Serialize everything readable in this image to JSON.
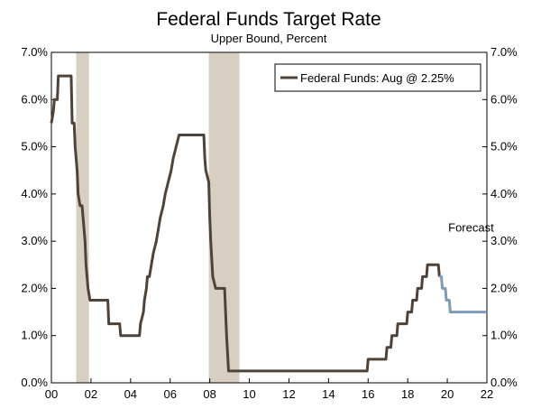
{
  "chart_data": {
    "type": "line",
    "title": "Federal Funds Target Rate",
    "subtitle": "Upper Bound, Percent",
    "xlim": [
      2000,
      2022
    ],
    "ylim": [
      0,
      7
    ],
    "x_ticks": [
      2000,
      2002,
      2004,
      2006,
      2008,
      2010,
      2012,
      2014,
      2016,
      2018,
      2020,
      2022
    ],
    "x_tick_labels": [
      "00",
      "02",
      "04",
      "06",
      "08",
      "10",
      "12",
      "14",
      "16",
      "18",
      "20",
      "22"
    ],
    "y_ticks": [
      0,
      1,
      2,
      3,
      4,
      5,
      6,
      7
    ],
    "y_tick_labels": [
      "0.0%",
      "1.0%",
      "2.0%",
      "3.0%",
      "4.0%",
      "5.0%",
      "6.0%",
      "7.0%"
    ],
    "y_tick_labels_right": [
      "0.0%",
      "1.0%",
      "2.0%",
      "3.0%",
      "4.0%",
      "5.0%",
      "6.0%",
      "7.0%"
    ],
    "grid": false,
    "legend": {
      "placement": "top-right",
      "entries": [
        {
          "label": "Federal Funds: Aug @ 2.25%",
          "color": "#4f4339"
        }
      ]
    },
    "annotations": [
      {
        "text": "Forecast",
        "x": 2021.2,
        "y": 3.2
      }
    ],
    "recessions": [
      [
        2001.25,
        2001.9
      ],
      [
        2007.95,
        2009.5
      ]
    ],
    "recession_color": "#d7cfc1",
    "series": [
      {
        "name": "Federal Funds: Aug @ 2.25%",
        "color": "#4f4339",
        "points": [
          [
            2000.0,
            5.5
          ],
          [
            2000.1,
            5.75
          ],
          [
            2000.15,
            6.0
          ],
          [
            2000.3,
            6.0
          ],
          [
            2000.35,
            6.5
          ],
          [
            2001.0,
            6.5
          ],
          [
            2001.05,
            5.5
          ],
          [
            2001.15,
            5.5
          ],
          [
            2001.2,
            5.0
          ],
          [
            2001.3,
            4.5
          ],
          [
            2001.35,
            4.0
          ],
          [
            2001.45,
            3.75
          ],
          [
            2001.55,
            3.75
          ],
          [
            2001.6,
            3.5
          ],
          [
            2001.7,
            3.0
          ],
          [
            2001.75,
            2.5
          ],
          [
            2001.85,
            2.0
          ],
          [
            2001.95,
            1.75
          ],
          [
            2002.85,
            1.75
          ],
          [
            2002.9,
            1.25
          ],
          [
            2003.45,
            1.25
          ],
          [
            2003.5,
            1.0
          ],
          [
            2004.45,
            1.0
          ],
          [
            2004.5,
            1.25
          ],
          [
            2004.65,
            1.5
          ],
          [
            2004.7,
            1.75
          ],
          [
            2004.8,
            2.0
          ],
          [
            2004.85,
            2.25
          ],
          [
            2004.95,
            2.25
          ],
          [
            2005.05,
            2.5
          ],
          [
            2005.15,
            2.75
          ],
          [
            2005.3,
            3.0
          ],
          [
            2005.4,
            3.25
          ],
          [
            2005.5,
            3.5
          ],
          [
            2005.65,
            3.75
          ],
          [
            2005.75,
            4.0
          ],
          [
            2005.9,
            4.25
          ],
          [
            2006.05,
            4.5
          ],
          [
            2006.15,
            4.75
          ],
          [
            2006.3,
            5.0
          ],
          [
            2006.45,
            5.25
          ],
          [
            2007.7,
            5.25
          ],
          [
            2007.75,
            4.75
          ],
          [
            2007.8,
            4.5
          ],
          [
            2007.95,
            4.25
          ],
          [
            2008.0,
            3.5
          ],
          [
            2008.05,
            3.0
          ],
          [
            2008.15,
            2.25
          ],
          [
            2008.3,
            2.0
          ],
          [
            2008.75,
            2.0
          ],
          [
            2008.8,
            1.5
          ],
          [
            2008.85,
            1.0
          ],
          [
            2008.95,
            0.25
          ],
          [
            2015.95,
            0.25
          ],
          [
            2016.0,
            0.5
          ],
          [
            2016.9,
            0.5
          ],
          [
            2016.95,
            0.75
          ],
          [
            2017.15,
            0.75
          ],
          [
            2017.2,
            1.0
          ],
          [
            2017.45,
            1.0
          ],
          [
            2017.5,
            1.25
          ],
          [
            2017.95,
            1.25
          ],
          [
            2018.0,
            1.5
          ],
          [
            2018.2,
            1.5
          ],
          [
            2018.25,
            1.75
          ],
          [
            2018.45,
            1.75
          ],
          [
            2018.5,
            2.0
          ],
          [
            2018.7,
            2.0
          ],
          [
            2018.75,
            2.25
          ],
          [
            2018.95,
            2.25
          ],
          [
            2019.0,
            2.5
          ],
          [
            2019.55,
            2.5
          ],
          [
            2019.6,
            2.25
          ]
        ]
      },
      {
        "name": "Forecast",
        "color": "#7f9ab4",
        "points": [
          [
            2019.6,
            2.25
          ],
          [
            2019.7,
            2.25
          ],
          [
            2019.75,
            2.0
          ],
          [
            2019.9,
            2.0
          ],
          [
            2019.95,
            1.75
          ],
          [
            2020.1,
            1.75
          ],
          [
            2020.15,
            1.5
          ],
          [
            2021.95,
            1.5
          ]
        ]
      }
    ]
  }
}
